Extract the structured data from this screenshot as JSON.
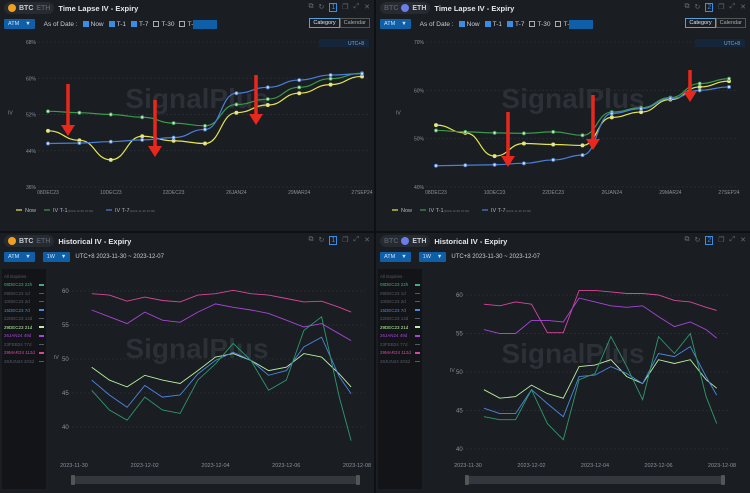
{
  "common": {
    "coins": [
      "BTC",
      "ETH"
    ],
    "atm": "ATM",
    "as_of_date": "As of Date :",
    "checks": [
      {
        "label": "Now",
        "on": true
      },
      {
        "label": "T-1",
        "on": true
      },
      {
        "label": "T-7",
        "on": true
      },
      {
        "label": "T-30",
        "on": false
      },
      {
        "label": "T-",
        "on": false
      }
    ],
    "category": "Category",
    "calendar": "Calendar",
    "utc": "UTC+8",
    "watermark": "SignalPlus",
    "iv_label": "IV",
    "period": "1W",
    "range": "UTC+8 2023-11-30 ~ 2023-12-07",
    "all_expiries": "All Expiries",
    "icons": [
      "external-link-icon",
      "refresh-icon",
      "layout-icon",
      "copy-icon",
      "expand-icon",
      "close-icon"
    ]
  },
  "panels": {
    "tl": {
      "coin": "BTC",
      "title": "Time Lapse IV - Expiry",
      "layout_num": "1"
    },
    "tr": {
      "coin": "ETH",
      "title": "Time Lapse IV - Expiry",
      "layout_num": "2"
    },
    "bl": {
      "coin": "BTC",
      "title": "Historical IV - Expiry",
      "layout_num": "1"
    },
    "br": {
      "coin": "ETH",
      "title": "Historical IV - Expiry",
      "layout_num": "2"
    }
  },
  "legend_expiries": [
    {
      "label": "08DEC23 22h",
      "color": "#3fae7a",
      "active": true
    },
    {
      "label": "09DEC23 1d",
      "color": "#555b66",
      "active": false
    },
    {
      "label": "10DEC23 2d",
      "color": "#555b66",
      "active": false
    },
    {
      "label": "15DEC23 7d",
      "color": "#4a88e0",
      "active": true
    },
    {
      "label": "22DEC23 14d",
      "color": "#555b66",
      "active": false
    },
    {
      "label": "29DEC23 21d",
      "color": "#b8f0a0",
      "active": true
    },
    {
      "label": "26JAN24 49d",
      "color": "#a845d8",
      "active": true
    },
    {
      "label": "23FEB24 77d",
      "color": "#555b66",
      "active": false
    },
    {
      "label": "29MAR24 112d",
      "color": "#d8479c",
      "active": true
    },
    {
      "label": "28JUN24 203d",
      "color": "#555b66",
      "active": false
    }
  ],
  "chart_data": [
    {
      "type": "line",
      "panel": "tl",
      "asset": "BTC",
      "title": "Time Lapse IV - Expiry",
      "ylabel": "IV",
      "categories": [
        "08DEC23",
        "09DEC23",
        "10DEC23",
        "15DEC23",
        "22DEC23",
        "29DEC23",
        "26JAN24",
        "23FEB24",
        "29MAR24",
        "28JUN24",
        "27SEP24"
      ],
      "tick_labels": [
        "08DEC23",
        "10DEC23",
        "22DEC23",
        "26JAN24",
        "29MAR24",
        "27SEP24"
      ],
      "yticks": [
        "68%",
        "60%",
        "52%",
        "44%",
        "36%"
      ],
      "ylim": [
        36,
        68
      ],
      "series": [
        {
          "name": "Now",
          "color": "#e4e64a",
          "values": [
            48.4,
            46.3,
            42.0,
            47.2,
            46.2,
            45.6,
            52.4,
            54.1,
            56.7,
            58.6,
            60.4
          ]
        },
        {
          "name": "IV T-1",
          "sub": "(2023-12-06 16:00)",
          "color": "#3a9a4a",
          "values": [
            52.7,
            52.4,
            52.0,
            51.4,
            50.1,
            49.5,
            54.2,
            55.4,
            58.0,
            59.9,
            61.1
          ]
        },
        {
          "name": "IV T-7",
          "sub": "(2023-11-30 16:00)",
          "color": "#4a7fd6",
          "values": [
            45.6,
            45.7,
            46.0,
            46.4,
            46.9,
            48.7,
            56.7,
            58.0,
            59.6,
            60.7,
            61.0
          ]
        }
      ]
    },
    {
      "type": "line",
      "panel": "tr",
      "asset": "ETH",
      "title": "Time Lapse IV - Expiry",
      "ylabel": "IV",
      "categories": [
        "08DEC23",
        "09DEC23",
        "10DEC23",
        "15DEC23",
        "22DEC23",
        "29DEC23",
        "26JAN24",
        "23FEB24",
        "29MAR24",
        "28JUN24",
        "27SEP24"
      ],
      "tick_labels": [
        "08DEC23",
        "10DEC23",
        "22DEC23",
        "26JAN24",
        "29MAR24",
        "27SEP24"
      ],
      "yticks": [
        "70%",
        "60%",
        "50%",
        "40%"
      ],
      "ylim": [
        40,
        70
      ],
      "series": [
        {
          "name": "Now",
          "color": "#e4e64a",
          "values": [
            52.8,
            51.2,
            46.4,
            49.0,
            48.8,
            48.6,
            54.4,
            55.5,
            58.1,
            60.7,
            61.9
          ]
        },
        {
          "name": "IV T-1",
          "sub": "(2023-12-06 16:00)",
          "color": "#3a9a4a",
          "values": [
            51.7,
            51.4,
            51.2,
            51.1,
            51.4,
            50.7,
            55.5,
            56.4,
            58.5,
            61.4,
            62.4
          ]
        },
        {
          "name": "IV T-7",
          "sub": "(2023-11-30 16:00)",
          "color": "#4a7fd6",
          "values": [
            44.4,
            44.5,
            44.6,
            44.9,
            45.6,
            46.6,
            55.2,
            56.2,
            58.3,
            60.0,
            60.7
          ]
        }
      ]
    },
    {
      "type": "line",
      "panel": "bl",
      "asset": "BTC",
      "title": "Historical IV - Expiry",
      "ylabel": "IV",
      "xticks": [
        "2023-11-30",
        "2023-12-02",
        "2023-12-04",
        "2023-12-06",
        "2023-12-08"
      ],
      "yticks": [
        60,
        55,
        50,
        45,
        40
      ],
      "ylim": [
        40,
        60
      ],
      "x": [
        "2023-11-30 12:00",
        "2023-12-01 00:00",
        "2023-12-01 12:00",
        "2023-12-02 00:00",
        "2023-12-02 12:00",
        "2023-12-03 00:00",
        "2023-12-03 12:00",
        "2023-12-04 00:00",
        "2023-12-04 12:00",
        "2023-12-05 00:00",
        "2023-12-05 12:00",
        "2023-12-06 00:00",
        "2023-12-06 12:00",
        "2023-12-07 00:00",
        "2023-12-07 12:00",
        "2023-12-07 20:00"
      ],
      "series": [
        {
          "name": "29MAR24 112d",
          "color": "#d8479c",
          "values": [
            59.6,
            59.4,
            58.5,
            59.1,
            58.6,
            58.4,
            59.4,
            59.6,
            60.1,
            59.6,
            59.4,
            58.9,
            58.4,
            58.5,
            57.6,
            56.9
          ]
        },
        {
          "name": "26JAN24 49d",
          "color": "#a845d8",
          "values": [
            57.2,
            56.2,
            55.2,
            56.9,
            55.7,
            55.4,
            56.9,
            58.1,
            57.6,
            57.2,
            56.7,
            55.7,
            54.7,
            55.2,
            53.7,
            52.7
          ]
        },
        {
          "name": "29DEC23 21d",
          "color": "#b8f0a0",
          "values": [
            48.8,
            46.9,
            45.9,
            47.6,
            46.9,
            46.4,
            48.3,
            50.3,
            50.8,
            49.8,
            48.3,
            48.8,
            50.8,
            50.3,
            47.8,
            45.9
          ]
        },
        {
          "name": "15DEC23 7d",
          "color": "#4a88e0",
          "values": [
            46.9,
            44.7,
            42.9,
            46.1,
            44.4,
            44.7,
            47.8,
            49.8,
            51.0,
            49.8,
            47.6,
            48.3,
            51.8,
            53.2,
            47.4,
            44.9
          ]
        },
        {
          "name": "08DEC23 22h",
          "color": "#2f9a6c",
          "values": [
            45.4,
            42.5,
            41.0,
            44.4,
            42.5,
            42.0,
            46.9,
            49.3,
            52.3,
            49.8,
            45.4,
            46.9,
            54.2,
            56.2,
            44.4,
            38.0
          ]
        }
      ]
    },
    {
      "type": "line",
      "panel": "br",
      "asset": "ETH",
      "title": "Historical IV - Expiry",
      "ylabel": "IV",
      "xticks": [
        "2023-11-30",
        "2023-12-02",
        "2023-12-04",
        "2023-12-06",
        "2023-12-08"
      ],
      "yticks": [
        60,
        55,
        50,
        45,
        40
      ],
      "ylim": [
        40,
        60
      ],
      "x": [
        "2023-11-30 12:00",
        "2023-12-01 00:00",
        "2023-12-01 12:00",
        "2023-12-02 00:00",
        "2023-12-02 12:00",
        "2023-12-03 00:00",
        "2023-12-03 12:00",
        "2023-12-04 00:00",
        "2023-12-04 12:00",
        "2023-12-05 00:00",
        "2023-12-05 12:00",
        "2023-12-06 00:00",
        "2023-12-06 12:00",
        "2023-12-07 00:00",
        "2023-12-07 12:00",
        "2023-12-07 20:00"
      ],
      "series": [
        {
          "name": "29MAR24 112d",
          "color": "#d8479c",
          "values": [
            58.8,
            58.6,
            59.1,
            58.8,
            55.1,
            55.1,
            60.6,
            60.6,
            60.4,
            60.2,
            60.2,
            60.0,
            59.3,
            59.1,
            58.4,
            58.0
          ]
        },
        {
          "name": "26JAN24 49d",
          "color": "#a845d8",
          "values": [
            55.5,
            55.0,
            55.0,
            56.7,
            56.7,
            56.5,
            59.6,
            59.1,
            58.6,
            58.4,
            58.6,
            57.2,
            55.9,
            56.5,
            55.5,
            54.4
          ]
        },
        {
          "name": "29DEC23 21d",
          "color": "#b8f0a0",
          "values": [
            47.7,
            46.6,
            46.8,
            48.3,
            47.2,
            46.6,
            50.7,
            50.9,
            51.6,
            49.4,
            48.5,
            51.6,
            51.1,
            51.6,
            49.0,
            47.9
          ]
        },
        {
          "name": "15DEC23 7d",
          "color": "#4a88e0",
          "values": [
            45.3,
            44.6,
            44.6,
            47.7,
            45.9,
            44.2,
            49.4,
            49.6,
            50.7,
            49.8,
            48.5,
            52.4,
            52.0,
            53.3,
            49.4,
            47.0
          ]
        },
        {
          "name": "08DEC23 22h",
          "color": "#2f9a6c",
          "values": [
            44.2,
            43.8,
            43.8,
            47.7,
            43.3,
            41.2,
            49.0,
            49.8,
            54.6,
            50.7,
            46.4,
            54.6,
            52.4,
            55.0,
            46.8,
            43.3
          ]
        }
      ]
    }
  ]
}
